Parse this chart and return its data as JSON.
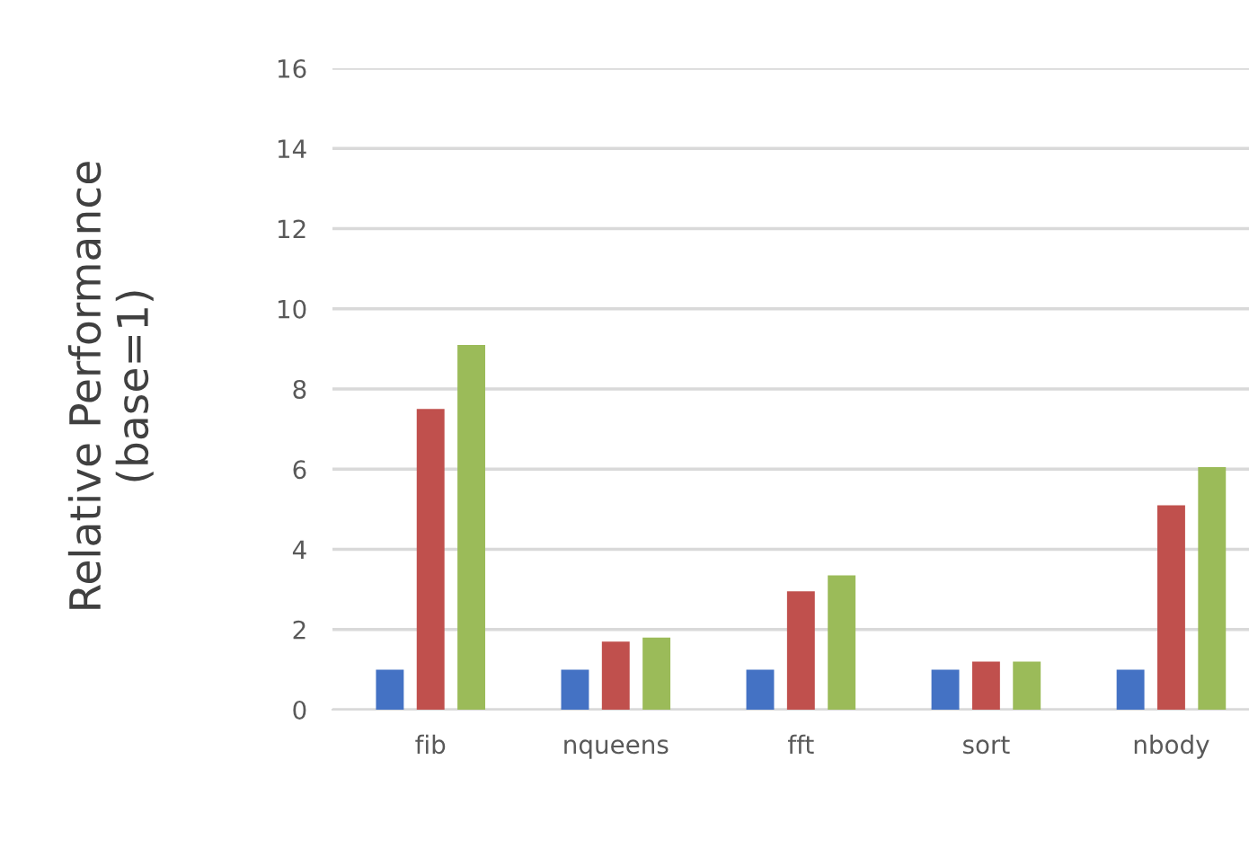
{
  "chart_data": {
    "type": "bar",
    "ylabel": "Relative Performance\n(base=1)",
    "categories": [
      "fib",
      "nqueens",
      "fft",
      "sort",
      "nbody"
    ],
    "series": [
      {
        "color": "#4472c4",
        "values": [
          1,
          1,
          1,
          1,
          1
        ]
      },
      {
        "color": "#c0504d",
        "values": [
          7.5,
          1.7,
          2.95,
          1.2,
          5.1
        ]
      },
      {
        "color": "#9bbb59",
        "values": [
          9.1,
          1.8,
          3.35,
          1.2,
          6.05
        ]
      }
    ],
    "ylim": [
      0,
      16
    ],
    "yticks": [
      0,
      2,
      4,
      6,
      8,
      10,
      12,
      14,
      16
    ],
    "grid": "y"
  }
}
